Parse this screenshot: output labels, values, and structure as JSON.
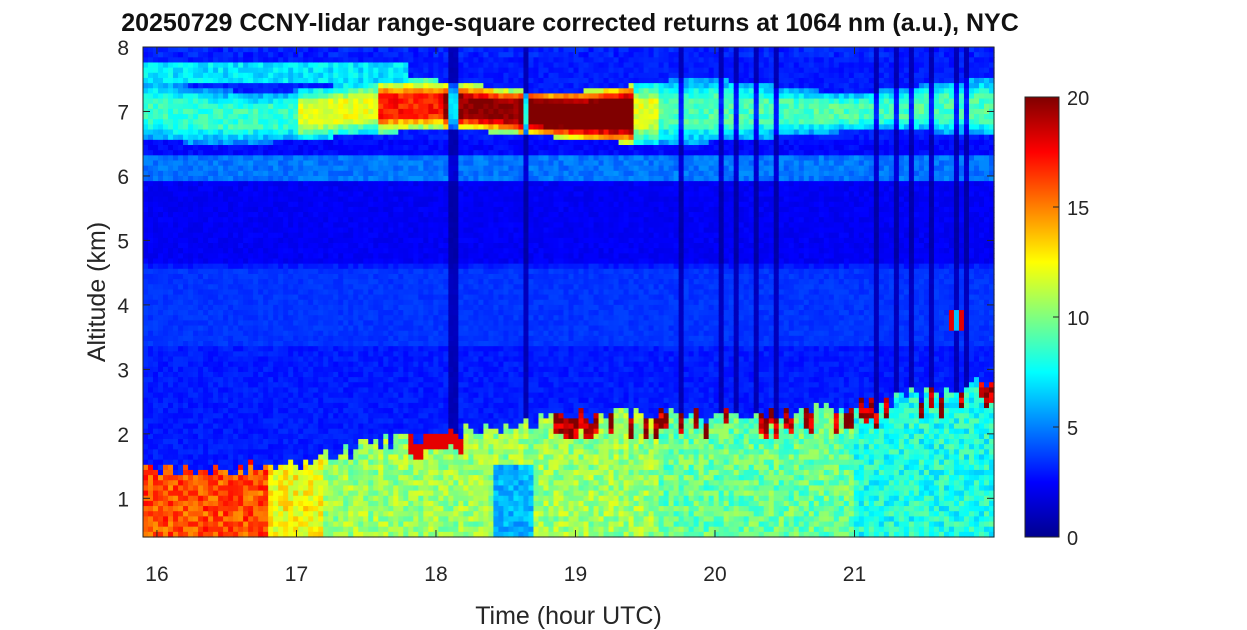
{
  "chart_data": {
    "type": "heatmap",
    "title": "20250729 CCNY-lidar range-square corrected returns at 1064 nm (a.u.), NYC",
    "xlabel": "Time (hour UTC)",
    "ylabel": "Altitude (km)",
    "xlim": [
      15.9,
      22.0
    ],
    "ylim": [
      0.4,
      8.0
    ],
    "xticks": [
      16,
      17,
      18,
      19,
      20,
      21
    ],
    "yticks": [
      1,
      2,
      3,
      4,
      5,
      6,
      7,
      8
    ],
    "colorbar": {
      "colormap": "jet",
      "clim": [
        0,
        20
      ],
      "ticks": [
        0,
        5,
        10,
        15,
        20
      ]
    },
    "features": {
      "boundary_layer_top_km": [
        [
          15.9,
          1.45
        ],
        [
          16.5,
          1.45
        ],
        [
          17.0,
          1.55
        ],
        [
          17.5,
          1.8
        ],
        [
          18.0,
          2.0
        ],
        [
          18.5,
          2.1
        ],
        [
          19.0,
          2.3
        ],
        [
          19.5,
          2.3
        ],
        [
          20.0,
          2.3
        ],
        [
          20.5,
          2.35
        ],
        [
          21.0,
          2.4
        ],
        [
          21.5,
          2.6
        ],
        [
          22.0,
          2.8
        ]
      ],
      "cirrus_layer_km": {
        "base": 6.6,
        "top": 7.4,
        "peak_time_hours": [
          18.6,
          19.4
        ]
      },
      "background_value": 2
    }
  }
}
